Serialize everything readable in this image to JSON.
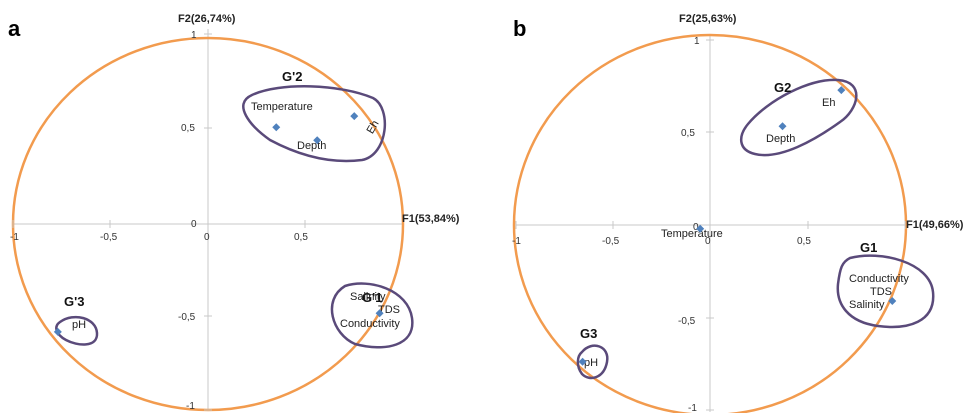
{
  "chart_data": [
    {
      "panel": "a",
      "type": "scatter",
      "xlabel": "F1(53,84%)",
      "ylabel": "F2(26,74%)",
      "xlim": [
        -1,
        1
      ],
      "ylim": [
        -1,
        1
      ],
      "x_ticks": [
        "-1",
        "-0,5",
        "0",
        "0,5",
        "1"
      ],
      "y_ticks": [
        "1",
        "0,5",
        "0",
        "-0,5",
        "-1"
      ],
      "correlation_circle": true,
      "points": [
        {
          "label": "Temperature",
          "x": 0.35,
          "y": 0.52
        },
        {
          "label": "Eh",
          "x": 0.75,
          "y": 0.58
        },
        {
          "label": "Depth",
          "x": 0.56,
          "y": 0.45
        },
        {
          "label": "Salinity",
          "x": 0.88,
          "y": -0.48
        },
        {
          "label": "TDS",
          "x": 0.88,
          "y": -0.48
        },
        {
          "label": "Conductivity",
          "x": 0.88,
          "y": -0.48
        },
        {
          "label": "pH",
          "x": -0.77,
          "y": -0.58
        }
      ],
      "groups": [
        {
          "name": "G'2",
          "members": [
            "Temperature",
            "Eh",
            "Depth"
          ]
        },
        {
          "name": "G'1",
          "members": [
            "Salinity",
            "TDS",
            "Conductivity"
          ]
        },
        {
          "name": "G'3",
          "members": [
            "pH"
          ]
        }
      ]
    },
    {
      "panel": "b",
      "type": "scatter",
      "xlabel": "F1(49,66%)",
      "ylabel": "F2(25,63%)",
      "xlim": [
        -1,
        1
      ],
      "ylim": [
        -1,
        1
      ],
      "x_ticks": [
        "-1",
        "-0,5",
        "0",
        "0,5",
        "1"
      ],
      "y_ticks": [
        "1",
        "0,5",
        "0",
        "-0,5",
        "-1"
      ],
      "correlation_circle": true,
      "points": [
        {
          "label": "Eh",
          "x": 0.67,
          "y": 0.71
        },
        {
          "label": "Depth",
          "x": 0.37,
          "y": 0.52
        },
        {
          "label": "Temperature",
          "x": -0.05,
          "y": -0.02
        },
        {
          "label": "Conductivity",
          "x": 0.93,
          "y": -0.4
        },
        {
          "label": "TDS",
          "x": 0.93,
          "y": -0.4
        },
        {
          "label": "Salinity",
          "x": 0.93,
          "y": -0.4
        },
        {
          "label": "pH",
          "x": -0.65,
          "y": -0.72
        }
      ],
      "groups": [
        {
          "name": "G2",
          "members": [
            "Eh",
            "Depth"
          ]
        },
        {
          "name": "G1",
          "members": [
            "Conductivity",
            "TDS",
            "Salinity"
          ]
        },
        {
          "name": "G3",
          "members": [
            "pH"
          ]
        }
      ]
    }
  ],
  "colors": {
    "circle": "#f29b4e",
    "group_outline": "#5a4a7a",
    "point": "#4f81bd",
    "axis": "#c8c8c8"
  }
}
